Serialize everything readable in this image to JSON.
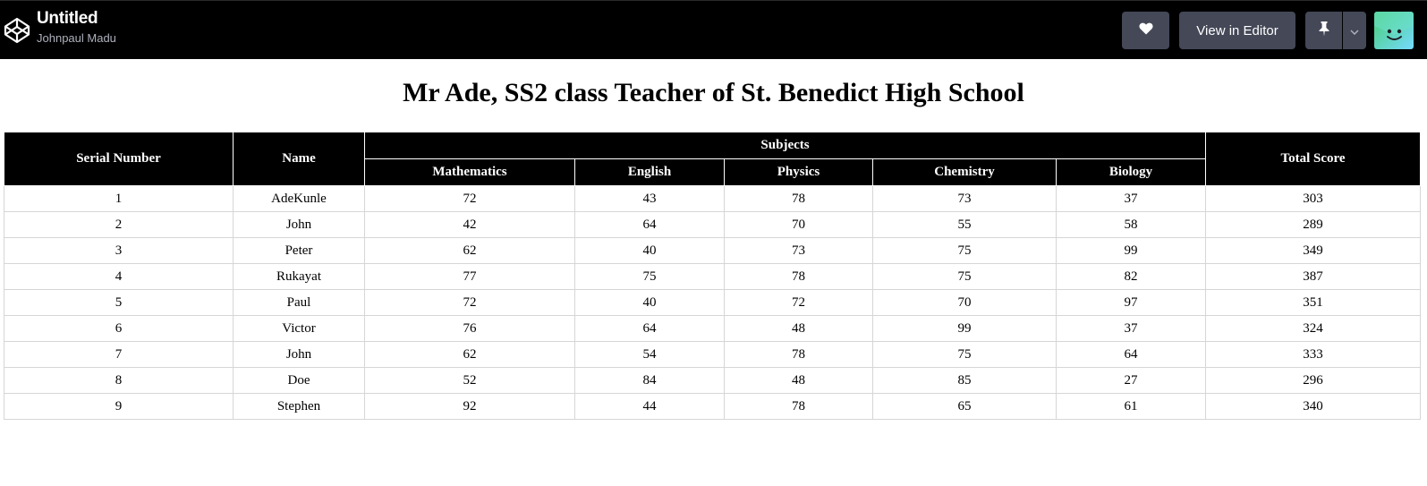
{
  "header": {
    "pen_title": "Untitled",
    "author": "Johnpaul Madu",
    "view_editor_label": "View in Editor",
    "icons": {
      "logo": "codepen-logo-icon",
      "heart": "heart-icon",
      "pin": "pin-icon",
      "caret": "chevron-down-icon",
      "avatar": "avatar-smiley-icon"
    },
    "colors": {
      "bar_bg": "#000000",
      "button_bg": "#444857",
      "author_text": "#aeb1bd",
      "avatar_gradient_start": "#47cf73",
      "avatar_gradient_end": "#76daff"
    }
  },
  "page": {
    "title": "Mr Ade, SS2 class Teacher of St. Benedict High School"
  },
  "table": {
    "headers": {
      "serial": "Serial Number",
      "name": "Name",
      "subjects": "Subjects",
      "total": "Total Score",
      "subject_list": [
        "Mathematics",
        "English",
        "Physics",
        "Chemistry",
        "Biology"
      ]
    },
    "rows": [
      {
        "serial": "1",
        "name": "AdeKunle",
        "scores": [
          "72",
          "43",
          "78",
          "73",
          "37"
        ],
        "total": "303"
      },
      {
        "serial": "2",
        "name": "John",
        "scores": [
          "42",
          "64",
          "70",
          "55",
          "58"
        ],
        "total": "289"
      },
      {
        "serial": "3",
        "name": "Peter",
        "scores": [
          "62",
          "40",
          "73",
          "75",
          "99"
        ],
        "total": "349"
      },
      {
        "serial": "4",
        "name": "Rukayat",
        "scores": [
          "77",
          "75",
          "78",
          "75",
          "82"
        ],
        "total": "387"
      },
      {
        "serial": "5",
        "name": "Paul",
        "scores": [
          "72",
          "40",
          "72",
          "70",
          "97"
        ],
        "total": "351"
      },
      {
        "serial": "6",
        "name": "Victor",
        "scores": [
          "76",
          "64",
          "48",
          "99",
          "37"
        ],
        "total": "324"
      },
      {
        "serial": "7",
        "name": "John",
        "scores": [
          "62",
          "54",
          "78",
          "75",
          "64"
        ],
        "total": "333"
      },
      {
        "serial": "8",
        "name": "Doe",
        "scores": [
          "52",
          "84",
          "48",
          "85",
          "27"
        ],
        "total": "296"
      },
      {
        "serial": "9",
        "name": "Stephen",
        "scores": [
          "92",
          "44",
          "78",
          "65",
          "61"
        ],
        "total": "340"
      }
    ]
  }
}
